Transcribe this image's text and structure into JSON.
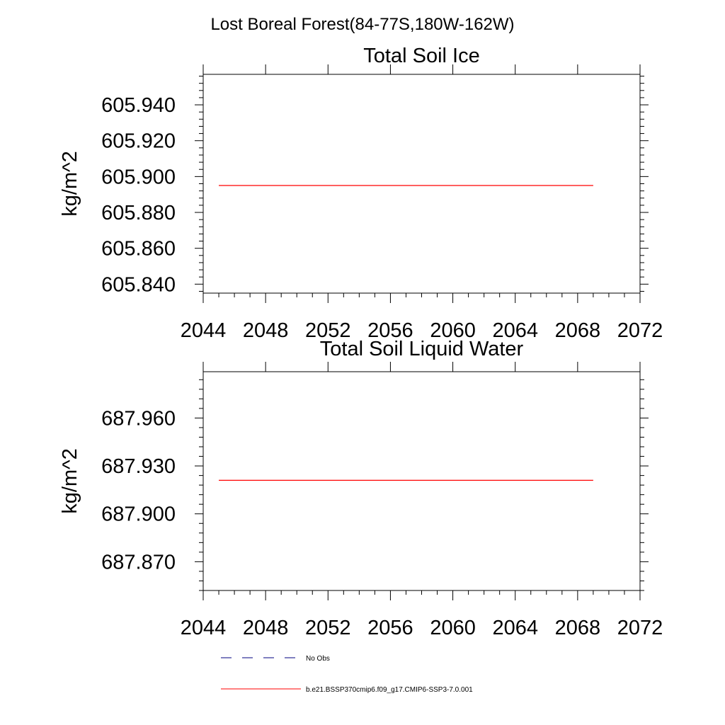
{
  "page_title": "Lost Boreal Forest(84-77S,180W-162W)",
  "colors": {
    "series": "#ff0000",
    "obs": "#000080",
    "axis": "#000000",
    "background": "#ffffff"
  },
  "chart_data": [
    {
      "type": "line",
      "title": "Total Soil Ice",
      "xlabel": "",
      "ylabel": "kg/m^2",
      "xlim": [
        2044,
        2072
      ],
      "ylim": [
        605.835,
        605.957
      ],
      "x_ticks": [
        "2044",
        "2048",
        "2052",
        "2056",
        "2060",
        "2064",
        "2068",
        "2072"
      ],
      "y_ticks": [
        "605.840",
        "605.860",
        "605.880",
        "605.900",
        "605.920",
        "605.940"
      ],
      "grid": false,
      "series": [
        {
          "name": "b.e21.BSSP370cmip6.f09_g17.CMIP6-SSP3-7.0.001",
          "x": [
            2045,
            2069
          ],
          "values": [
            605.895,
            605.895
          ]
        }
      ]
    },
    {
      "type": "line",
      "title": "Total Soil Liquid Water",
      "xlabel": "",
      "ylabel": "kg/m^2",
      "xlim": [
        2044,
        2072
      ],
      "ylim": [
        687.852,
        687.989
      ],
      "x_ticks": [
        "2044",
        "2048",
        "2052",
        "2056",
        "2060",
        "2064",
        "2068",
        "2072"
      ],
      "y_ticks": [
        "687.870",
        "687.900",
        "687.930",
        "687.960"
      ],
      "grid": false,
      "series": [
        {
          "name": "b.e21.BSSP370cmip6.f09_g17.CMIP6-SSP3-7.0.001",
          "x": [
            2045,
            2069
          ],
          "values": [
            687.921,
            687.921
          ]
        }
      ]
    }
  ],
  "legend": {
    "placement": "bottom",
    "entries": [
      {
        "label": "No Obs",
        "style": "dashed",
        "color": "#000080"
      },
      {
        "label": "b.e21.BSSP370cmip6.f09_g17.CMIP6-SSP3-7.0.001",
        "style": "solid",
        "color": "#ff0000"
      }
    ]
  }
}
